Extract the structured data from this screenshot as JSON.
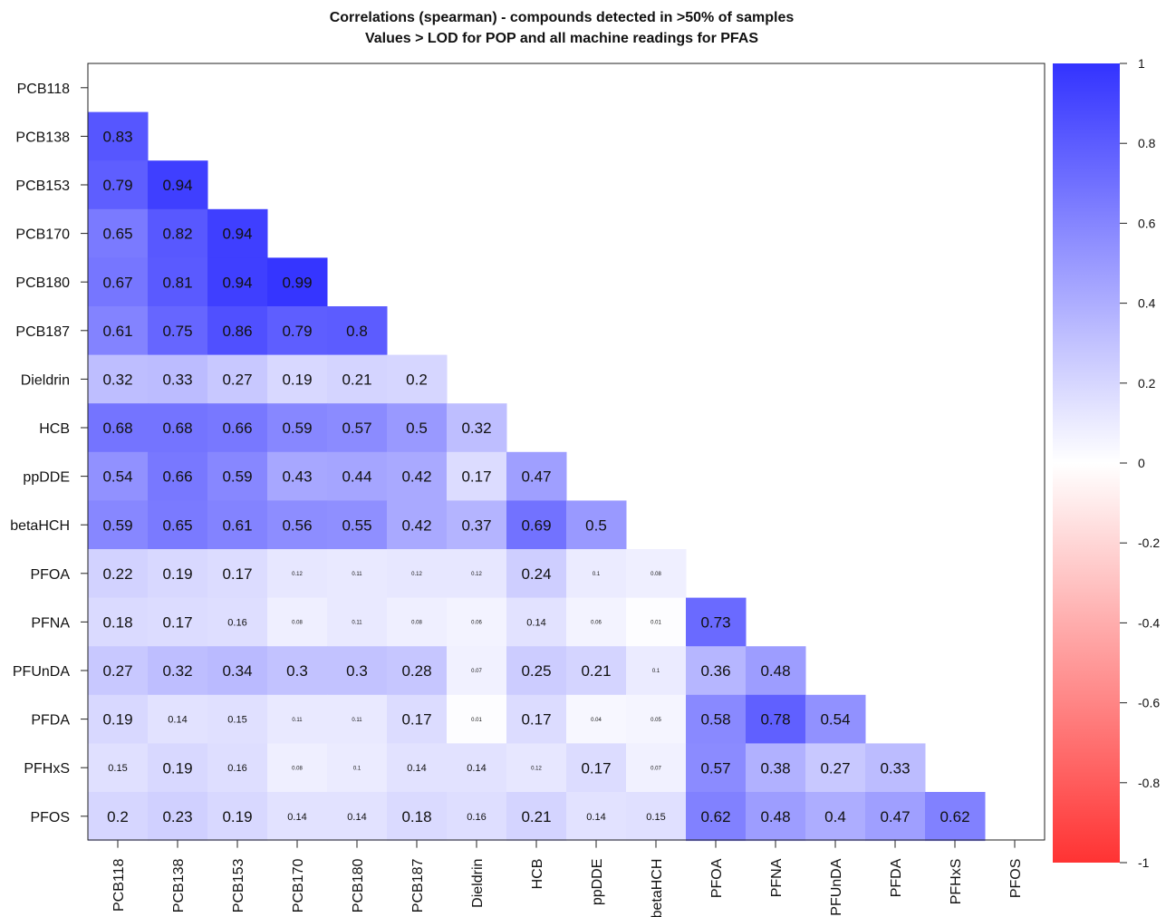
{
  "chart_data": {
    "type": "heatmap",
    "title": "Correlations (spearman) - compounds detected in >50% of samples",
    "subtitle": "Values > LOD for POP and all machine readings for PFAS",
    "labels": [
      "PCB118",
      "PCB138",
      "PCB153",
      "PCB170",
      "PCB180",
      "PCB187",
      "Dieldrin",
      "HCB",
      "ppDDE",
      "betaHCH",
      "PFOA",
      "PFNA",
      "PFUnDA",
      "PFDA",
      "PFHxS",
      "PFOS"
    ],
    "lower_triangle": [
      [],
      [
        0.83
      ],
      [
        0.79,
        0.94
      ],
      [
        0.65,
        0.82,
        0.94
      ],
      [
        0.67,
        0.81,
        0.94,
        0.99
      ],
      [
        0.61,
        0.75,
        0.86,
        0.79,
        0.8
      ],
      [
        0.32,
        0.33,
        0.27,
        0.19,
        0.21,
        0.2
      ],
      [
        0.68,
        0.68,
        0.66,
        0.59,
        0.57,
        0.5,
        0.32
      ],
      [
        0.54,
        0.66,
        0.59,
        0.43,
        0.44,
        0.42,
        0.17,
        0.47
      ],
      [
        0.59,
        0.65,
        0.61,
        0.56,
        0.55,
        0.42,
        0.37,
        0.69,
        0.5
      ],
      [
        0.22,
        0.19,
        0.17,
        0.12,
        0.11,
        0.12,
        0.12,
        0.24,
        0.1,
        0.08
      ],
      [
        0.18,
        0.17,
        0.16,
        0.08,
        0.11,
        0.08,
        0.06,
        0.14,
        0.06,
        0.01,
        0.73
      ],
      [
        0.27,
        0.32,
        0.34,
        0.3,
        0.3,
        0.28,
        0.07,
        0.25,
        0.21,
        0.1,
        0.36,
        0.48
      ],
      [
        0.19,
        0.14,
        0.15,
        0.11,
        0.11,
        0.17,
        0.01,
        0.17,
        0.04,
        0.05,
        0.58,
        0.78,
        0.54
      ],
      [
        0.15,
        0.19,
        0.16,
        0.08,
        0.1,
        0.14,
        0.14,
        0.12,
        0.17,
        0.07,
        0.57,
        0.38,
        0.27,
        0.33
      ],
      [
        0.2,
        0.23,
        0.19,
        0.14,
        0.14,
        0.18,
        0.16,
        0.21,
        0.14,
        0.15,
        0.62,
        0.48,
        0.4,
        0.47,
        0.62
      ]
    ],
    "color_scale": {
      "min": -1,
      "max": 1,
      "low_color": "#ff3333",
      "mid_color": "#ffffff",
      "high_color": "#3333ff"
    },
    "colorbar_ticks": [
      "1",
      "0.8",
      "0.6",
      "0.4",
      "0.2",
      "0",
      "-0.2",
      "-0.4",
      "-0.6",
      "-0.8",
      "-1"
    ],
    "colorbar_tick_values": [
      1,
      0.8,
      0.6,
      0.4,
      0.2,
      0,
      -0.2,
      -0.4,
      -0.6,
      -0.8,
      -1
    ]
  }
}
